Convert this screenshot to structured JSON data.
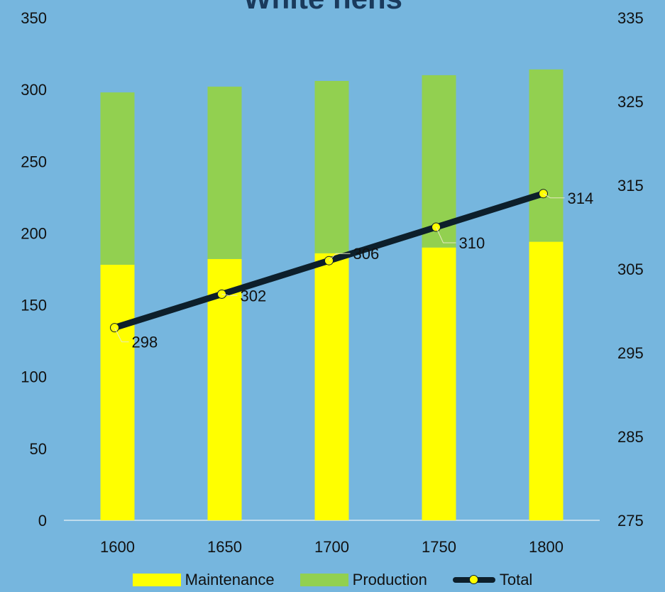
{
  "chart_data": {
    "type": "bar",
    "title": "White hens",
    "categories": [
      "1600",
      "1650",
      "1700",
      "1750",
      "1800"
    ],
    "series": [
      {
        "name": "Maintenance",
        "type": "bar",
        "axis": "left",
        "color": "#ffff00",
        "values": [
          178,
          182,
          186,
          190,
          194
        ]
      },
      {
        "name": "Production",
        "type": "bar",
        "axis": "left",
        "color": "#92d050",
        "values": [
          120,
          120,
          120,
          120,
          120
        ]
      },
      {
        "name": "Total",
        "type": "line",
        "axis": "right",
        "color": "#0d1f2b",
        "marker_color": "#ffff00",
        "values": [
          298,
          302,
          306,
          310,
          314
        ]
      }
    ],
    "stacked": true,
    "left_axis": {
      "ylim": [
        0,
        350
      ],
      "ticks": [
        "0",
        "50",
        "100",
        "150",
        "200",
        "250",
        "300",
        "350"
      ]
    },
    "right_axis": {
      "ylim": [
        275,
        335
      ],
      "ticks": [
        "275",
        "285",
        "295",
        "305",
        "315",
        "325",
        "335"
      ]
    },
    "data_labels": [
      "298",
      "302",
      "306",
      "310",
      "314"
    ],
    "grid": false,
    "legend_position": "bottom"
  }
}
